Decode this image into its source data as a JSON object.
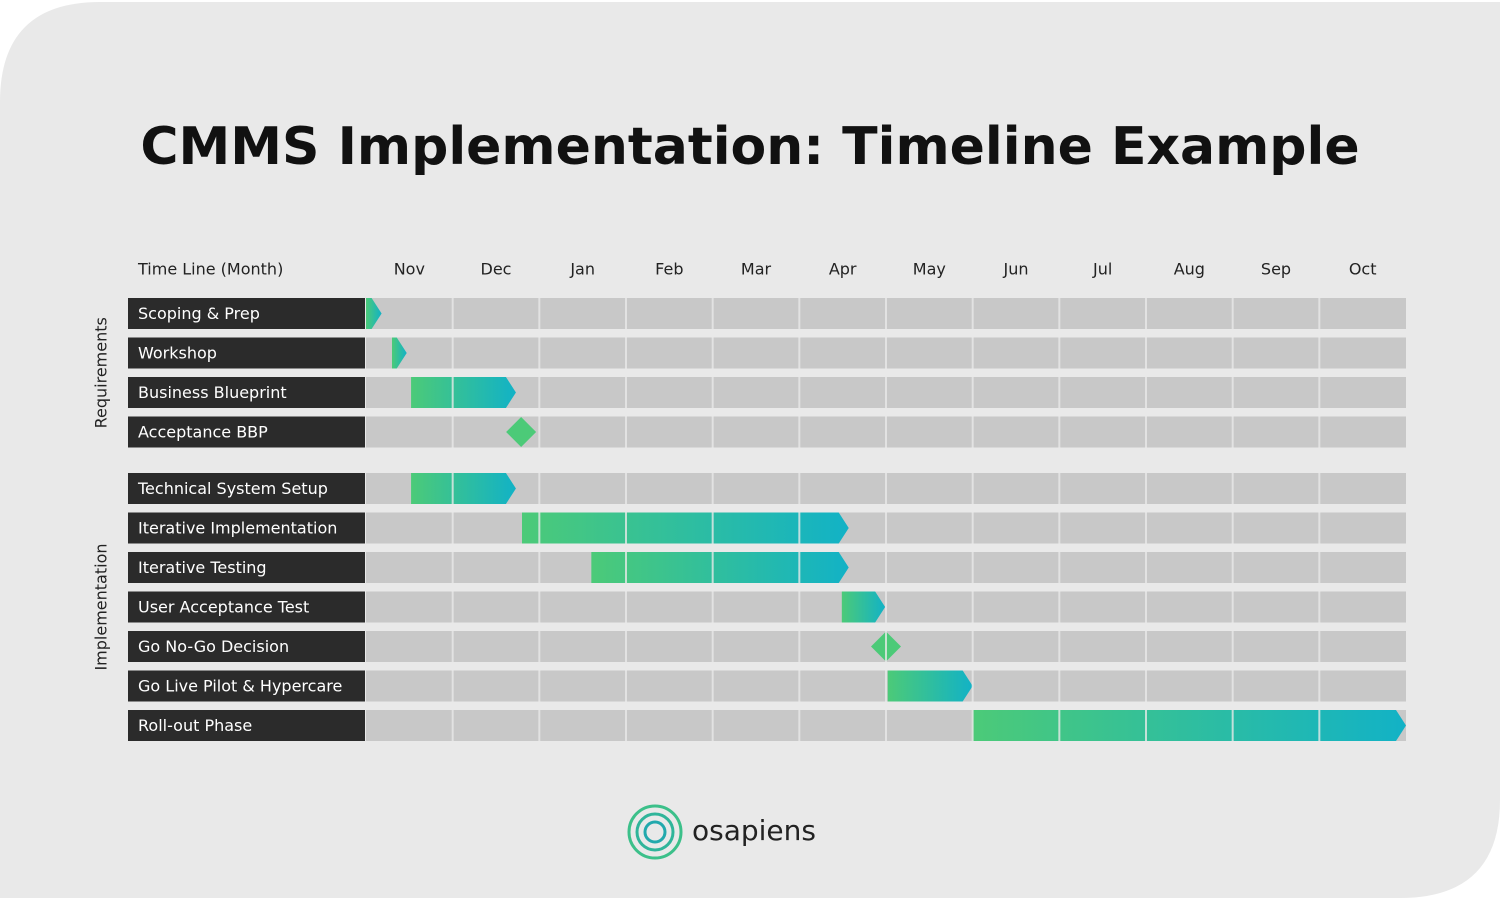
{
  "chart_data": {
    "type": "gantt",
    "title": "CMMS Implementation: Timeline Example",
    "x_label": "Time Line (Month)",
    "categories": [
      "Nov",
      "Dec",
      "Jan",
      "Feb",
      "Mar",
      "Apr",
      "May",
      "Jun",
      "Jul",
      "Aug",
      "Sep",
      "Oct"
    ],
    "xlim": [
      0,
      12
    ],
    "colors": [
      "#4cca78",
      "#12b2c6"
    ],
    "groups": [
      {
        "name": "Requirements",
        "tasks": [
          {
            "name": "Scoping & Prep",
            "start": 0,
            "end": 0.18
          },
          {
            "name": "Workshop",
            "start": 0.3,
            "end": 0.47
          },
          {
            "name": "Business Blueprint",
            "start": 0.52,
            "end": 1.73
          },
          {
            "name": "Acceptance BBP",
            "at": 1.79
          }
        ]
      },
      {
        "name": "Implementation",
        "tasks": [
          {
            "name": "Technical System Setup",
            "start": 0.52,
            "end": 1.73
          },
          {
            "name": "Iterative Implementation",
            "start": 1.8,
            "end": 5.57
          },
          {
            "name": "Iterative Testing",
            "start": 2.6,
            "end": 5.57
          },
          {
            "name": "User Acceptance Test",
            "start": 5.49,
            "end": 5.99
          },
          {
            "name": "Go No-Go Decision",
            "at": 6.0
          },
          {
            "name": "Go Live Pilot & Hypercare",
            "start": 6.02,
            "end": 7.0
          },
          {
            "name": "Roll-out Phase",
            "start": 7.0,
            "end": 12
          }
        ]
      }
    ]
  },
  "logo": "osapiens"
}
